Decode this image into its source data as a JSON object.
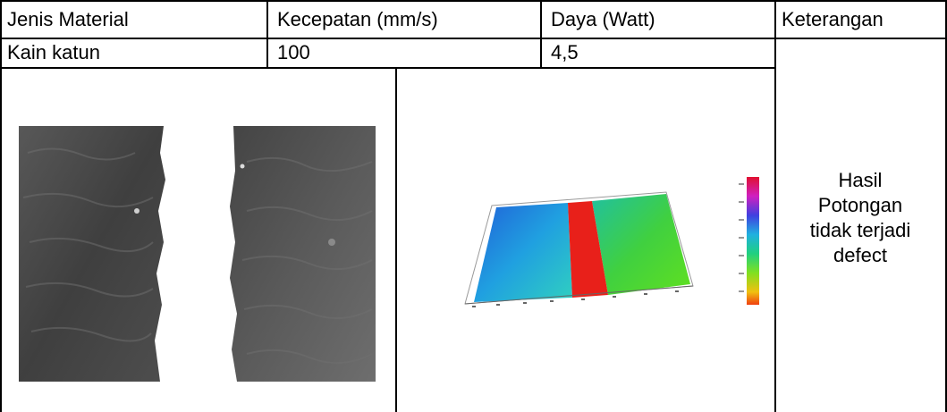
{
  "table": {
    "headers": [
      "Jenis Material",
      "Kecepatan (mm/s)",
      "Daya (Watt)",
      "Keterangan"
    ],
    "row": {
      "material": "Kain katun",
      "speed": "100",
      "power": "4,5",
      "note_lines": [
        "Hasil",
        "Potongan",
        "tidak terjadi",
        "defect"
      ]
    }
  },
  "images": {
    "micrograph": "cut-fabric-micrograph",
    "surface_plot": "3d-surface-profile-plot"
  }
}
